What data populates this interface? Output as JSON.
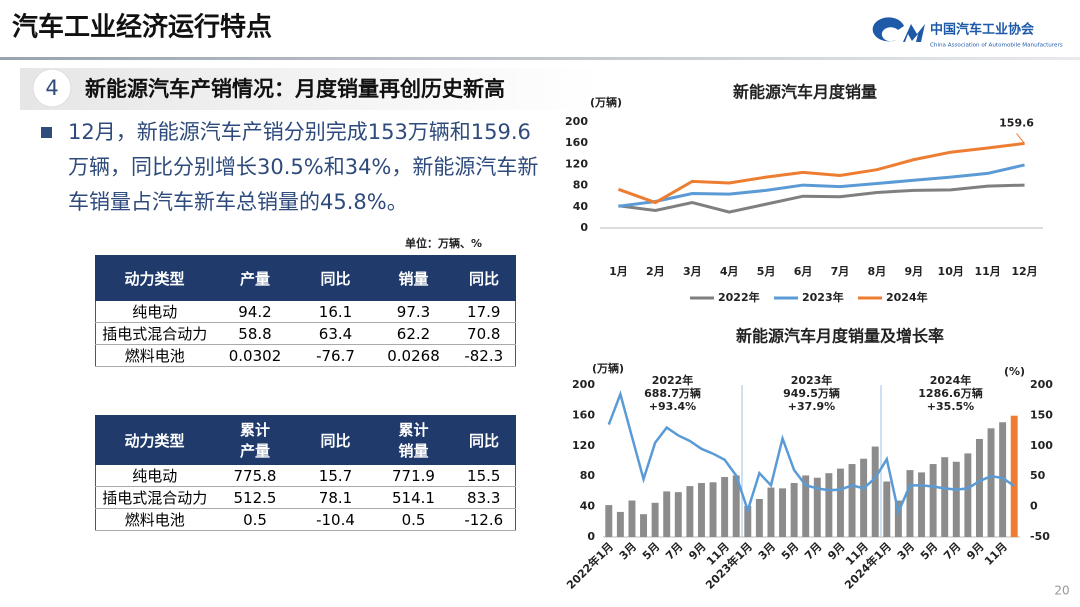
{
  "header": {
    "title": "汽车工业经济运行特点",
    "org_name": "中国汽车工业协会",
    "org_name_en": "China Association of Automobile Manufacturers"
  },
  "section": {
    "number": "4",
    "title": "新能源汽车产销情况：月度销量再创历史新高"
  },
  "bullet": "12月，新能源汽车产销分别完成153万辆和159.6万辆，同比分别增长30.5%和34%，新能源汽车新车销量占汽车新车总销量的45.8%。",
  "unit": "单位：万辆、%",
  "tables": [
    {
      "header": [
        "动力类型",
        "产量",
        "同比",
        "销量",
        "同比"
      ],
      "rows": [
        [
          "纯电动",
          94.2,
          16.1,
          97.3,
          17.9
        ],
        [
          "插电式混合动力",
          58.8,
          63.4,
          62.2,
          70.8
        ],
        [
          "燃料电池",
          0.0302,
          -76.7,
          0.0268,
          -82.3
        ]
      ]
    },
    {
      "header": [
        "动力类型",
        "累计产量",
        "同比",
        "累计销量",
        "同比"
      ],
      "rows": [
        [
          "纯电动",
          775.8,
          15.7,
          771.9,
          15.5
        ],
        [
          "插电式混合动力",
          512.5,
          78.1,
          514.1,
          83.3
        ],
        [
          "燃料电池",
          0.5,
          -10.4,
          0.5,
          -12.6
        ]
      ]
    }
  ],
  "chart_data": [
    {
      "type": "line",
      "title": "新能源汽车月度销量",
      "y_label": "(万辆)",
      "categories": [
        "1月",
        "2月",
        "3月",
        "4月",
        "5月",
        "6月",
        "7月",
        "8月",
        "9月",
        "10月",
        "11月",
        "12月"
      ],
      "series": [
        {
          "name": "2022年",
          "color": "#7f7f7f",
          "values": [
            42,
            33,
            48,
            30,
            45,
            60,
            59,
            67,
            71,
            72,
            79,
            81
          ]
        },
        {
          "name": "2023年",
          "color": "#5b9bd5",
          "values": [
            41,
            50,
            65,
            64,
            71,
            81,
            78,
            84,
            90,
            96,
            103,
            119
          ]
        },
        {
          "name": "2024年",
          "color": "#ed7d31",
          "values": [
            73,
            48,
            88,
            85,
            96,
            105,
            99,
            110,
            129,
            143,
            151,
            159.6
          ],
          "labels": "last"
        }
      ],
      "ylim": [
        0,
        200
      ],
      "yticks": [
        0,
        40,
        80,
        120,
        160,
        200
      ],
      "grid": false,
      "legend": "bottom"
    },
    {
      "type": "bar_line",
      "title": "新能源汽车月度销量及增长率",
      "y_label": "(万辆)",
      "y2_label": "(%)",
      "categories": [
        "2022年1月",
        null,
        "3月",
        null,
        "5月",
        null,
        "7月",
        null,
        "9月",
        null,
        "11月",
        null,
        "2023年1月",
        null,
        "3月",
        null,
        "5月",
        null,
        "7月",
        null,
        "9月",
        null,
        "11月",
        null,
        "2024年1月",
        null,
        "3月",
        null,
        "5月",
        null,
        "7月",
        null,
        "9月",
        null,
        "11月",
        null
      ],
      "series": [
        {
          "type": "bar",
          "color": "#8c8c8c",
          "colors": [
            "#8c8c8c",
            "#8c8c8c",
            "#8c8c8c",
            "#8c8c8c",
            "#8c8c8c",
            "#8c8c8c",
            "#8c8c8c",
            "#8c8c8c",
            "#8c8c8c",
            "#8c8c8c",
            "#8c8c8c",
            "#8c8c8c",
            "#8c8c8c",
            "#8c8c8c",
            "#8c8c8c",
            "#8c8c8c",
            "#8c8c8c",
            "#8c8c8c",
            "#8c8c8c",
            "#8c8c8c",
            "#8c8c8c",
            "#8c8c8c",
            "#8c8c8c",
            "#8c8c8c",
            "#8c8c8c",
            "#8c8c8c",
            "#8c8c8c",
            "#8c8c8c",
            "#8c8c8c",
            "#8c8c8c",
            "#8c8c8c",
            "#8c8c8c",
            "#8c8c8c",
            "#8c8c8c",
            "#8c8c8c",
            "#ed7d31"
          ],
          "values": [
            42,
            33,
            48,
            30,
            45,
            60,
            59,
            67,
            71,
            72,
            79,
            81,
            41,
            50,
            65,
            64,
            71,
            81,
            78,
            84,
            90,
            96,
            103,
            119,
            73,
            48,
            88,
            85,
            96,
            105,
            99,
            110,
            129,
            143,
            151,
            159.6
          ]
        },
        {
          "type": "line",
          "axis": "y2",
          "color": "#5b9bd5",
          "values": [
            135,
            185,
            115,
            45,
            105,
            130,
            117,
            108,
            95,
            87,
            77,
            51,
            -6,
            55,
            35,
            112,
            60,
            35,
            30,
            27,
            28,
            35,
            30,
            47,
            78,
            -9,
            35,
            35,
            33,
            30,
            28,
            30,
            42,
            50,
            47,
            34
          ]
        }
      ],
      "annotations": [
        [
          "2022年",
          "688.7万辆",
          "+93.4%"
        ],
        [
          "2023年",
          "949.5万辆",
          "+37.9%"
        ],
        [
          "2024年",
          "1286.6万辆",
          "+35.5%"
        ]
      ],
      "ylim": [
        0,
        200
      ],
      "yticks": [
        0,
        40,
        80,
        120,
        160,
        200
      ],
      "y2lim": [
        -50,
        200
      ],
      "y2ticks": [
        -50,
        0,
        50,
        100,
        150,
        200
      ],
      "grid": false
    }
  ],
  "page_number": "20"
}
